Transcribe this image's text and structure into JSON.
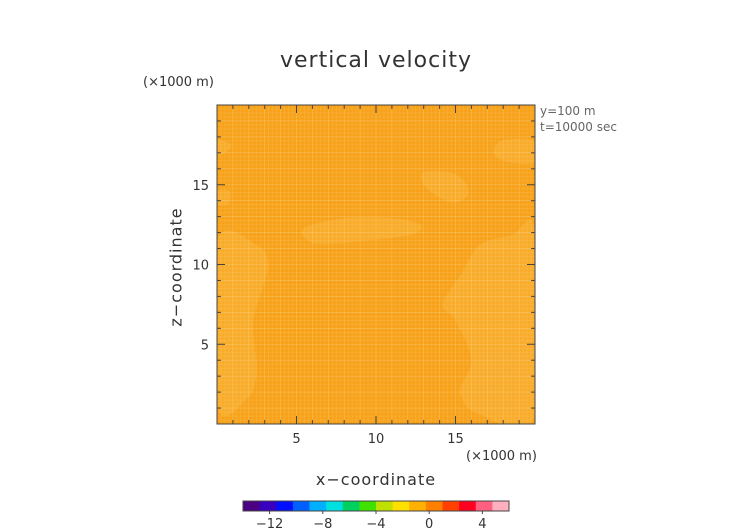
{
  "chart_data": {
    "type": "heatmap",
    "title": "vertical velocity",
    "xlabel": "x−coordinate",
    "ylabel": "z−coordinate",
    "x_scale_label": "(×1000 m)",
    "y_scale_label": "(×1000 m)",
    "info": [
      "y=100  m",
      "t=10000  sec"
    ],
    "xlim": [
      0,
      20
    ],
    "ylim": [
      0,
      20
    ],
    "xticks": [
      5,
      10,
      15
    ],
    "yticks": [
      5,
      10,
      15
    ],
    "fill_color": "#f7a219",
    "region_color": "#f9ac2a",
    "colorbar": {
      "ticks": [
        -12,
        -8,
        -4,
        0,
        4
      ],
      "tick_labels": [
        "−12",
        "−8",
        "−4",
        "0",
        "4"
      ],
      "range": [
        -14,
        6
      ],
      "colors": [
        "#4b0082",
        "#3a00c0",
        "#0010ff",
        "#0060ff",
        "#00b0ff",
        "#00e0e0",
        "#00d060",
        "#40e000",
        "#c0e000",
        "#ffe000",
        "#ffb000",
        "#ff8000",
        "#ff4000",
        "#ff0020",
        "#ff6080",
        "#ffb0c0"
      ]
    },
    "regions": [
      {
        "name": "left-lobe",
        "points": [
          [
            0,
            1.2
          ],
          [
            1.8,
            1.5
          ],
          [
            2.5,
            3.2
          ],
          [
            2.3,
            6.5
          ],
          [
            3.2,
            9.8
          ],
          [
            2.5,
            11.2
          ],
          [
            0,
            11.4
          ]
        ]
      },
      {
        "name": "right-lobe",
        "points": [
          [
            20,
            0.6
          ],
          [
            16.5,
            0.6
          ],
          [
            15.3,
            2
          ],
          [
            16,
            4
          ],
          [
            15,
            6.5
          ],
          [
            14.2,
            7.5
          ],
          [
            15.3,
            9.3
          ],
          [
            16.5,
            11.2
          ],
          [
            18.5,
            11.8
          ],
          [
            20,
            12
          ]
        ]
      },
      {
        "name": "center-band",
        "points": [
          [
            5.5,
            12.3
          ],
          [
            8,
            12.9
          ],
          [
            11,
            12.9
          ],
          [
            12.8,
            12.5
          ],
          [
            12.3,
            11.9
          ],
          [
            9.5,
            11.5
          ],
          [
            6.5,
            11.3
          ],
          [
            5.6,
            11.6
          ]
        ]
      },
      {
        "name": "upper-right-patch",
        "points": [
          [
            13,
            15.8
          ],
          [
            14.5,
            15.8
          ],
          [
            15.5,
            15.3
          ],
          [
            15.8,
            14.4
          ],
          [
            15,
            13.9
          ],
          [
            14,
            14.2
          ],
          [
            13,
            15
          ]
        ]
      },
      {
        "name": "top-right-patch",
        "points": [
          [
            20,
            17.7
          ],
          [
            18,
            17.8
          ],
          [
            17.4,
            17.1
          ],
          [
            18,
            16.5
          ],
          [
            20,
            16.4
          ]
        ]
      },
      {
        "name": "top-left-patch",
        "points": [
          [
            0,
            17.8
          ],
          [
            0.9,
            17.5
          ],
          [
            0.5,
            17
          ],
          [
            0,
            16.9
          ]
        ]
      },
      {
        "name": "lower-left-patch",
        "points": [
          [
            0,
            14.6
          ],
          [
            0.8,
            14.6
          ],
          [
            0.7,
            13.8
          ],
          [
            0,
            13.8
          ]
        ]
      }
    ]
  }
}
